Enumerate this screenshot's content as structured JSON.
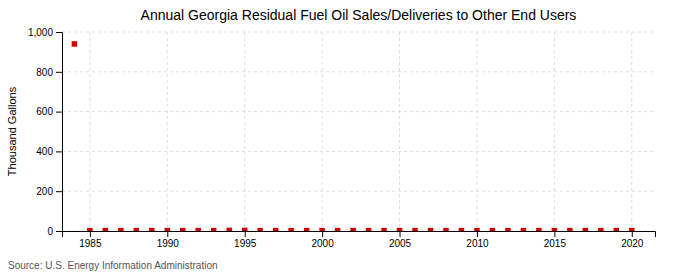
{
  "chart_data": {
    "type": "scatter",
    "title": "Annual Georgia Residual Fuel Oil Sales/Deliveries to Other End Users",
    "ylabel": "Thousand Gallons",
    "source": "Source: U.S. Energy Information Administration",
    "x": [
      1984,
      1985,
      1986,
      1987,
      1988,
      1989,
      1990,
      1991,
      1992,
      1993,
      1994,
      1995,
      1996,
      1997,
      1998,
      1999,
      2000,
      2001,
      2002,
      2003,
      2004,
      2005,
      2006,
      2007,
      2008,
      2009,
      2010,
      2011,
      2012,
      2013,
      2014,
      2015,
      2016,
      2017,
      2018,
      2019,
      2020
    ],
    "values": [
      940,
      2,
      2,
      2,
      2,
      2,
      2,
      2,
      2,
      2,
      3,
      3,
      2,
      2,
      2,
      2,
      2,
      2,
      2,
      2,
      2,
      2,
      2,
      2,
      2,
      2,
      2,
      2,
      2,
      2,
      2,
      2,
      2,
      2,
      2,
      2,
      2
    ],
    "color": "#CC0000",
    "marker": "square",
    "xlim": [
      1983.2,
      2021.5
    ],
    "ylim": [
      0,
      1000
    ],
    "xticks": [
      1985,
      1990,
      1995,
      2000,
      2005,
      2010,
      2015,
      2020
    ],
    "yticks": [
      0,
      200,
      400,
      600,
      800,
      {
        "value": 1000,
        "label": "1,000"
      }
    ],
    "grid": true
  }
}
